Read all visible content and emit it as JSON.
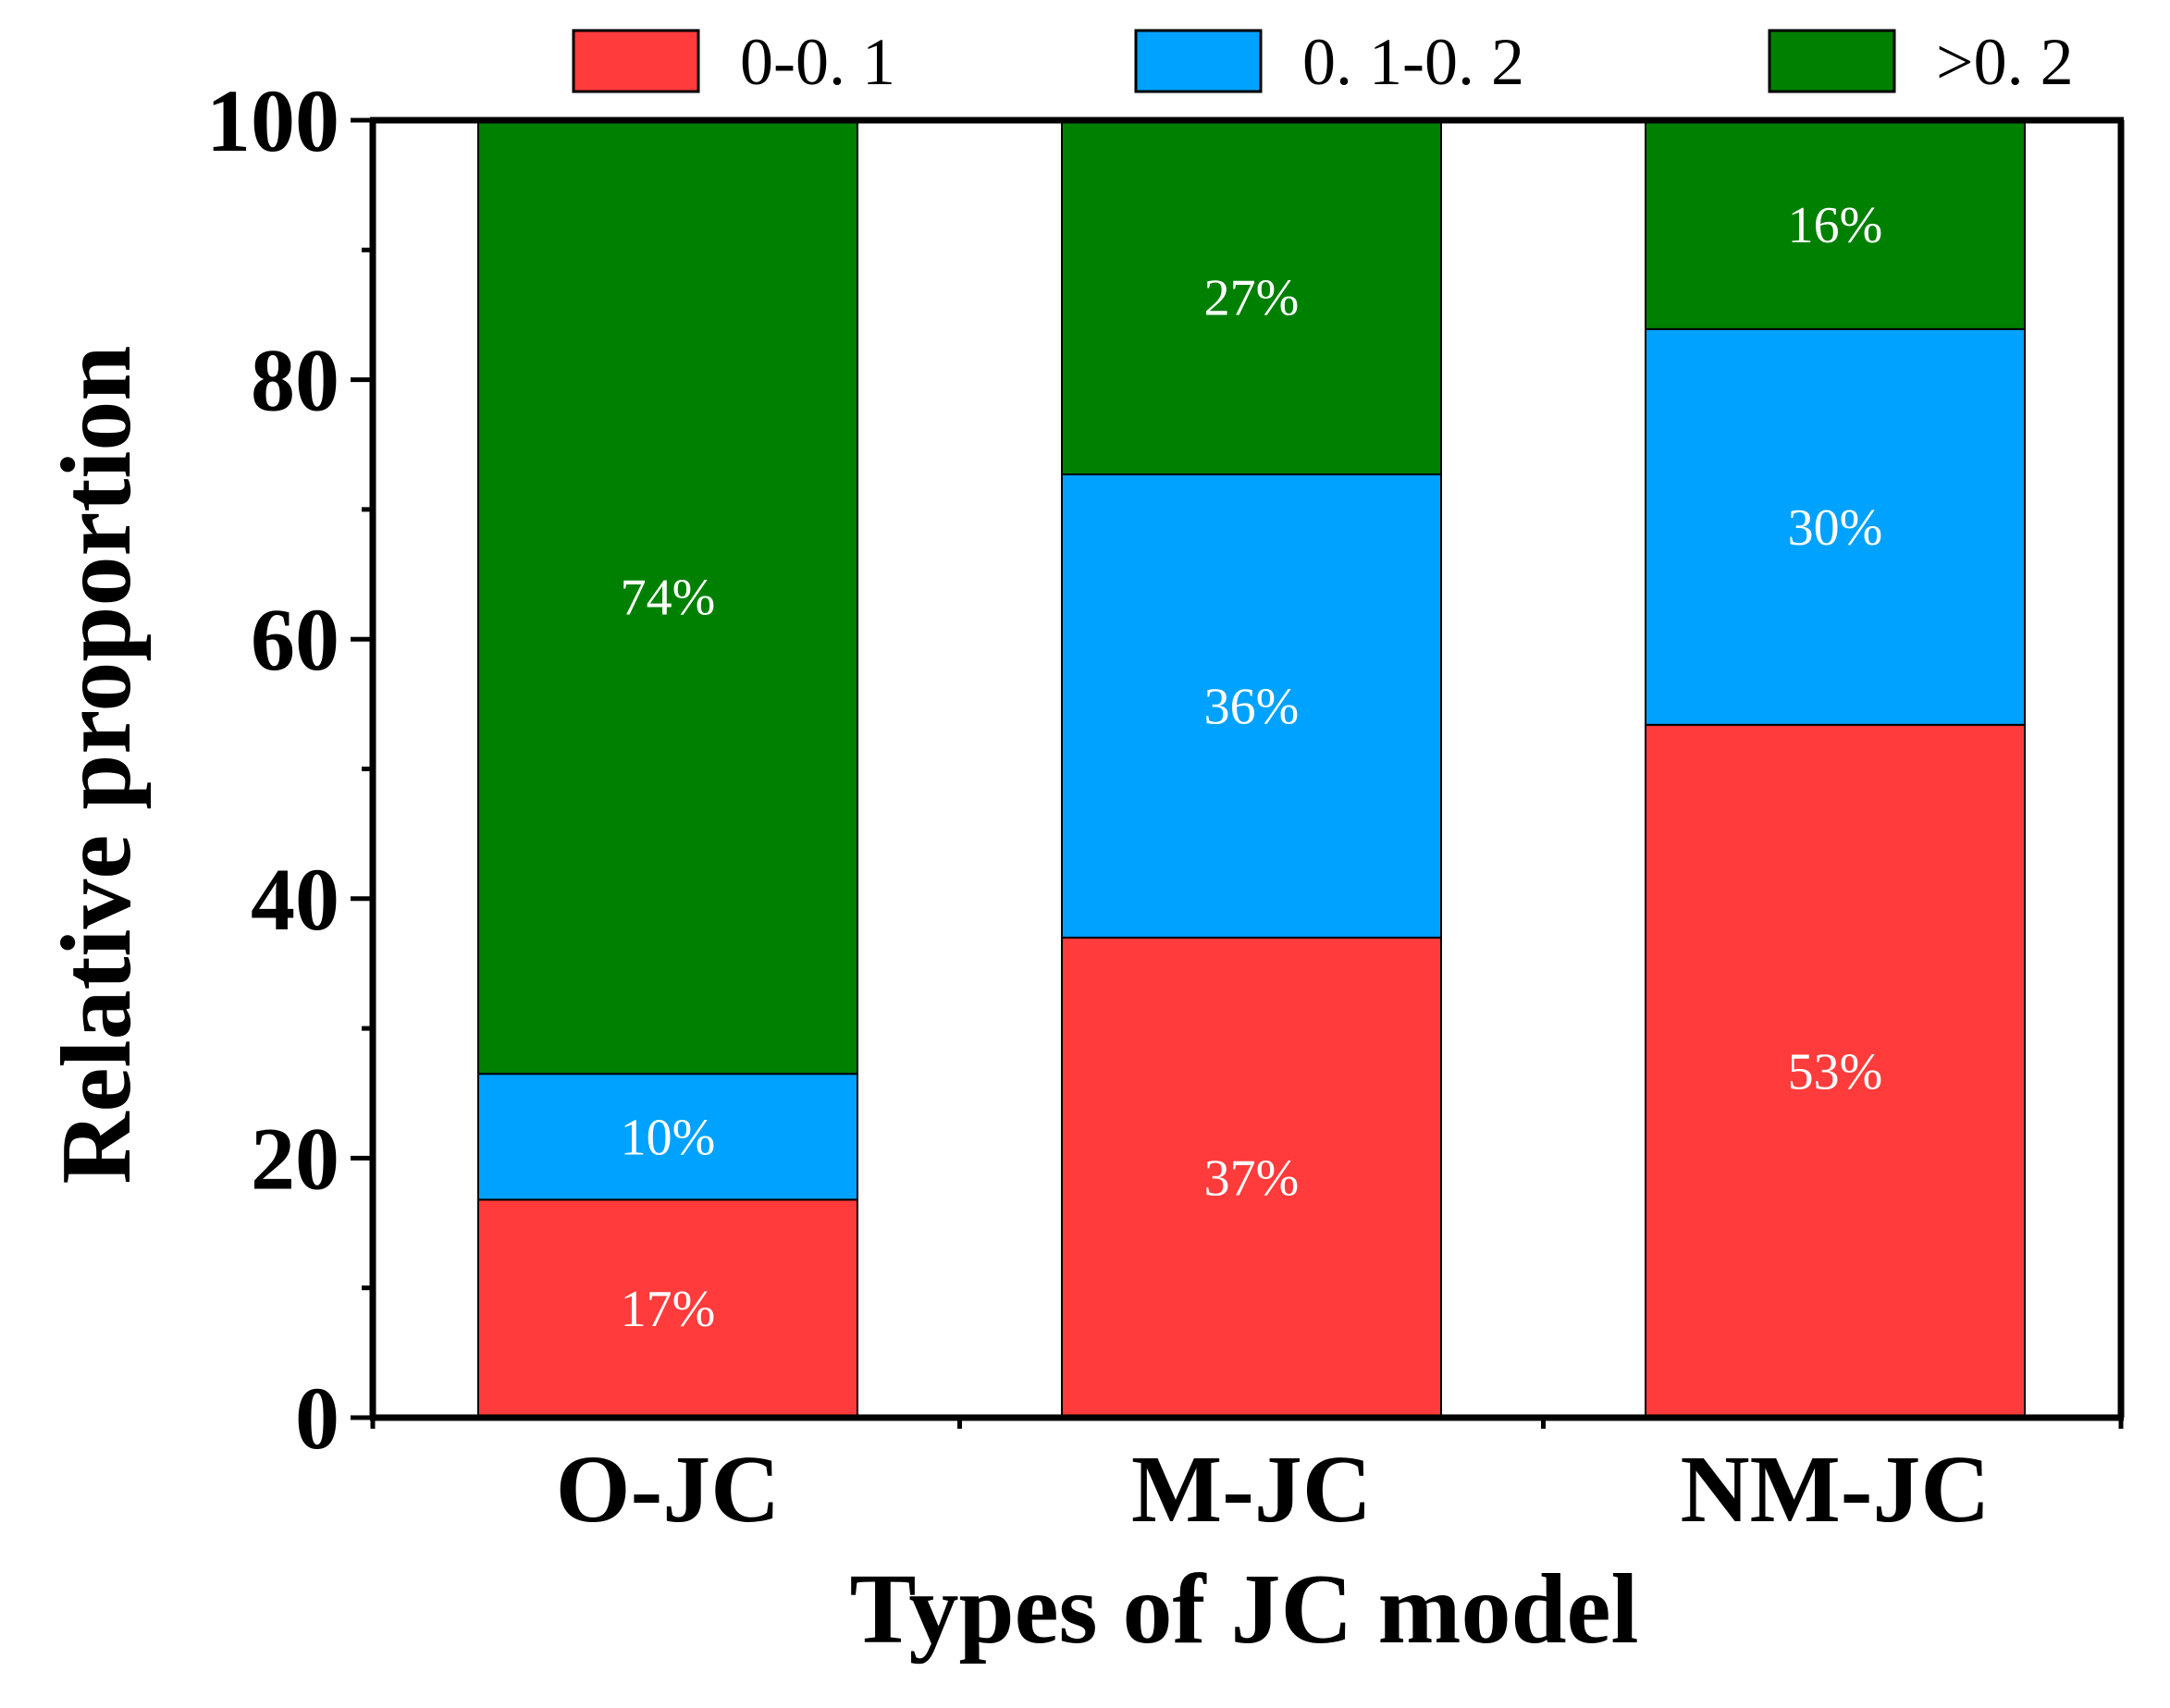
{
  "chart_data": {
    "type": "bar",
    "stacked": true,
    "categories": [
      "O-JC",
      "M-JC",
      "NM-JC"
    ],
    "series": [
      {
        "name": "0-0. 1",
        "color": "#ff3b3b",
        "values": [
          16.8,
          37.0,
          53.4
        ],
        "labels": [
          "17%",
          "37%",
          "53%"
        ]
      },
      {
        "name": "0. 1-0. 2",
        "color": "#00a2ff",
        "values": [
          9.7,
          35.7,
          30.5
        ],
        "labels": [
          "10%",
          "36%",
          "30%"
        ]
      },
      {
        "name": ">0. 2",
        "color": "#008000",
        "values": [
          73.5,
          27.3,
          16.1
        ],
        "labels": [
          "74%",
          "27%",
          "16%"
        ]
      }
    ],
    "xlabel": "Types of JC model",
    "ylabel": "Relative proportion",
    "ylim": [
      0,
      100
    ],
    "yticks": [
      0,
      20,
      40,
      60,
      80,
      100
    ],
    "legend_position": "top",
    "data_label_color": "#ffffff",
    "grid": false
  }
}
